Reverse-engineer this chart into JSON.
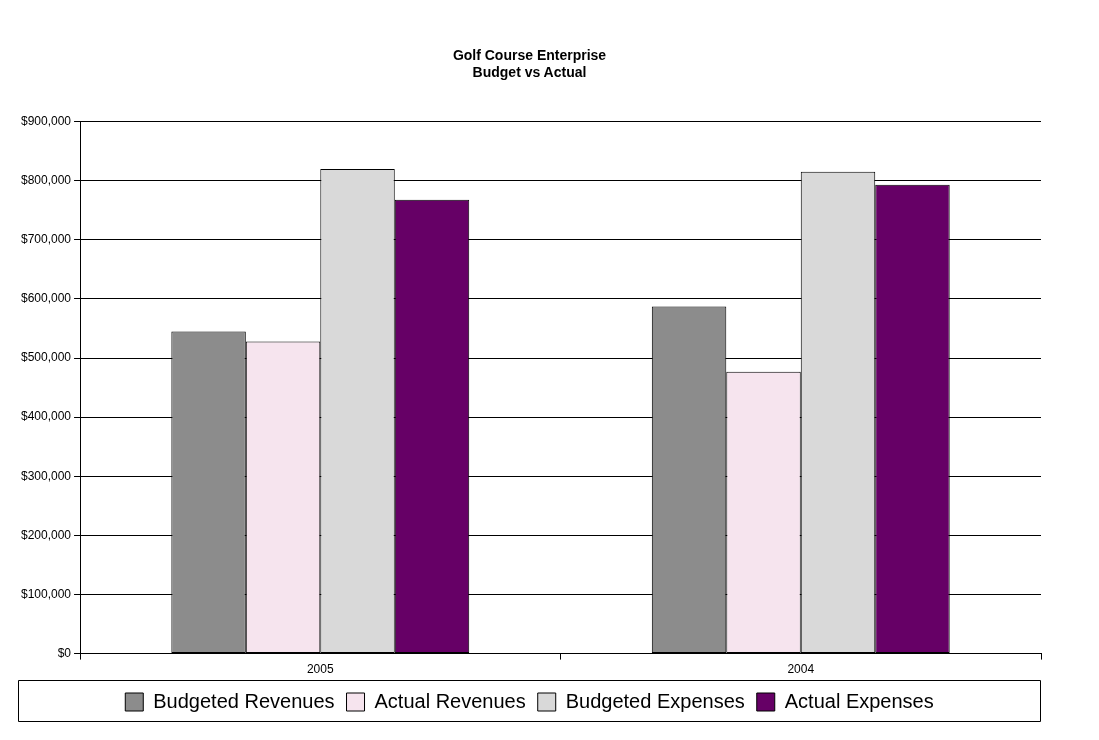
{
  "chart_data": {
    "type": "bar",
    "title": "Golf Course Enterprise\nBudget vs Actual",
    "categories": [
      "2005",
      "2004"
    ],
    "series": [
      {
        "name": "Budgeted Revenues",
        "color": "#8c8c8c",
        "values": [
          545000,
          587000
        ]
      },
      {
        "name": "Actual Revenues",
        "color": "#f6e4ee",
        "values": [
          528000,
          477000
        ]
      },
      {
        "name": "Budgeted Expenses",
        "color": "#d9d9d9",
        "values": [
          820000,
          815000
        ]
      },
      {
        "name": "Actual Expenses",
        "color": "#660066",
        "values": [
          768000,
          793000
        ]
      }
    ],
    "ylim": [
      0,
      900000
    ],
    "yticks": [
      {
        "value": 0,
        "label": "$0"
      },
      {
        "value": 100000,
        "label": "$100,000"
      },
      {
        "value": 200000,
        "label": "$200,000"
      },
      {
        "value": 300000,
        "label": "$300,000"
      },
      {
        "value": 400000,
        "label": "$400,000"
      },
      {
        "value": 500000,
        "label": "$500,000"
      },
      {
        "value": 600000,
        "label": "$600,000"
      },
      {
        "value": 700000,
        "label": "$700,000"
      },
      {
        "value": 800000,
        "label": "$800,000"
      },
      {
        "value": 900000,
        "label": "$900,000"
      }
    ],
    "grid": "y",
    "legend": "bottom"
  }
}
